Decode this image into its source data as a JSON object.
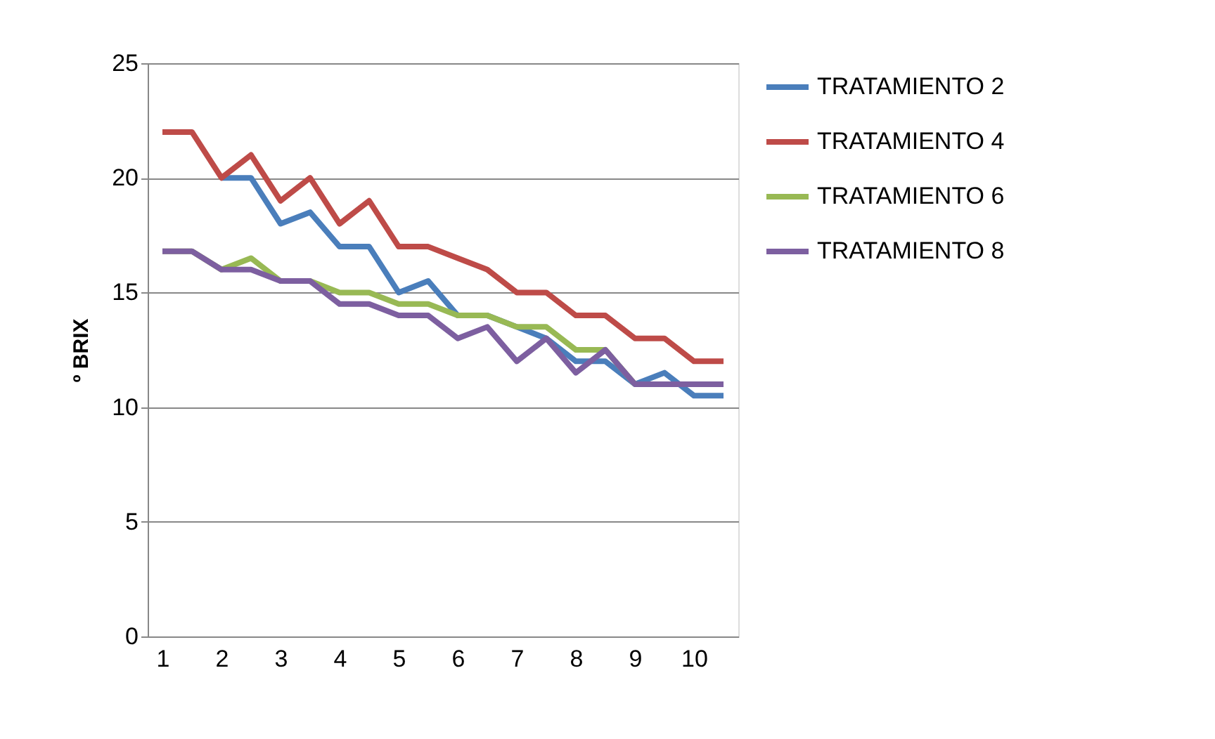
{
  "chart_data": {
    "type": "line",
    "ylabel": "º BRIX",
    "categories": [
      "1",
      null,
      "2",
      null,
      "3",
      null,
      "4",
      null,
      "5",
      null,
      "6",
      null,
      "7",
      null,
      "8",
      null,
      "9",
      null,
      "10",
      null
    ],
    "series": [
      {
        "name": "TRATAMIENTO 2",
        "color": "#4a7ebb",
        "values": [
          null,
          null,
          20,
          20,
          18,
          18.5,
          17,
          17,
          15,
          15.5,
          14,
          14,
          13.5,
          13,
          12,
          12,
          11,
          11.5,
          10.5,
          10.5
        ]
      },
      {
        "name": "TRATAMIENTO 4",
        "color": "#be4b48",
        "values": [
          22,
          22,
          20,
          21,
          19,
          20,
          18,
          19,
          17,
          17,
          16.5,
          16,
          15,
          15,
          14,
          14,
          13,
          13,
          12,
          12
        ]
      },
      {
        "name": "TRATAMIENTO 6",
        "color": "#98b954",
        "values": [
          16.8,
          16.8,
          16,
          16.5,
          15.5,
          15.5,
          15,
          15,
          14.5,
          14.5,
          14,
          14,
          13.5,
          13.5,
          12.5,
          12.5,
          11,
          null,
          null,
          null
        ]
      },
      {
        "name": "TRATAMIENTO 8",
        "color": "#7d5fa0",
        "values": [
          16.8,
          16.8,
          16,
          16,
          15.5,
          15.5,
          14.5,
          14.5,
          14,
          14,
          13,
          13.5,
          12,
          13,
          11.5,
          12.5,
          11,
          11,
          11,
          11
        ]
      }
    ],
    "ylim": [
      0,
      25
    ],
    "yticks": [
      0,
      5,
      10,
      15,
      20,
      25
    ],
    "grid": "y",
    "legend": "right",
    "marker": "none",
    "line_style": "solid"
  }
}
